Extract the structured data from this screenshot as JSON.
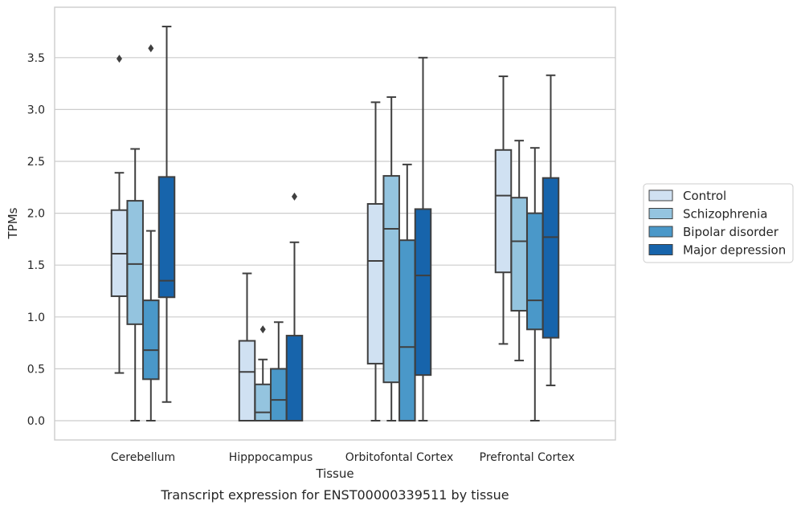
{
  "caption": "Transcript expression for ENST00000339511 by tissue",
  "chart_data": {
    "type": "box",
    "xlabel": "Tissue",
    "ylabel": "TPMs",
    "ylim": [
      -0.18,
      3.98
    ],
    "yticks": [
      0.0,
      0.5,
      1.0,
      1.5,
      2.0,
      2.5,
      3.0,
      3.5
    ],
    "ytick_labels": [
      "0.0",
      "0.5",
      "1.0",
      "1.5",
      "2.0",
      "2.5",
      "3.0",
      "3.5"
    ],
    "grid": "horizontal",
    "legend_position": "right",
    "categories": [
      "Cerebellum",
      "Hipppocampus",
      "Orbitofontal Cortex",
      "Prefrontal Cortex"
    ],
    "series": [
      {
        "name": "Control",
        "color": "#d0e1f2",
        "boxes": [
          {
            "whisker_low": 0.46,
            "q1": 1.2,
            "median": 1.61,
            "q3": 2.03,
            "whisker_high": 2.39,
            "outliers": [
              3.49
            ]
          },
          {
            "whisker_low": 0.0,
            "q1": 0.0,
            "median": 0.47,
            "q3": 0.77,
            "whisker_high": 1.42,
            "outliers": []
          },
          {
            "whisker_low": 0.0,
            "q1": 0.55,
            "median": 1.54,
            "q3": 2.09,
            "whisker_high": 3.07,
            "outliers": []
          },
          {
            "whisker_low": 0.74,
            "q1": 1.43,
            "median": 2.17,
            "q3": 2.61,
            "whisker_high": 3.32,
            "outliers": []
          }
        ]
      },
      {
        "name": "Schizophrenia",
        "color": "#94c4df",
        "boxes": [
          {
            "whisker_low": 0.0,
            "q1": 0.93,
            "median": 1.51,
            "q3": 2.12,
            "whisker_high": 2.62,
            "outliers": []
          },
          {
            "whisker_low": 0.0,
            "q1": 0.0,
            "median": 0.08,
            "q3": 0.35,
            "whisker_high": 0.59,
            "outliers": [
              0.88
            ]
          },
          {
            "whisker_low": 0.0,
            "q1": 0.37,
            "median": 1.85,
            "q3": 2.36,
            "whisker_high": 3.12,
            "outliers": []
          },
          {
            "whisker_low": 0.58,
            "q1": 1.06,
            "median": 1.73,
            "q3": 2.15,
            "whisker_high": 2.7,
            "outliers": []
          }
        ]
      },
      {
        "name": "Bipolar disorder",
        "color": "#4a98c9",
        "boxes": [
          {
            "whisker_low": 0.0,
            "q1": 0.4,
            "median": 0.68,
            "q3": 1.16,
            "whisker_high": 1.83,
            "outliers": [
              3.59
            ]
          },
          {
            "whisker_low": 0.0,
            "q1": 0.0,
            "median": 0.2,
            "q3": 0.5,
            "whisker_high": 0.95,
            "outliers": []
          },
          {
            "whisker_low": 0.0,
            "q1": 0.0,
            "median": 0.71,
            "q3": 1.74,
            "whisker_high": 2.47,
            "outliers": []
          },
          {
            "whisker_low": 0.0,
            "q1": 0.88,
            "median": 1.16,
            "q3": 2.0,
            "whisker_high": 2.63,
            "outliers": []
          }
        ]
      },
      {
        "name": "Major depression",
        "color": "#1764ab",
        "boxes": [
          {
            "whisker_low": 0.18,
            "q1": 1.19,
            "median": 1.35,
            "q3": 2.35,
            "whisker_high": 3.8,
            "outliers": []
          },
          {
            "whisker_low": 0.0,
            "q1": 0.0,
            "median": 0.0,
            "q3": 0.82,
            "whisker_high": 1.72,
            "outliers": [
              2.16
            ]
          },
          {
            "whisker_low": 0.0,
            "q1": 0.44,
            "median": 1.4,
            "q3": 2.04,
            "whisker_high": 3.5,
            "outliers": []
          },
          {
            "whisker_low": 0.34,
            "q1": 0.8,
            "median": 1.77,
            "q3": 2.34,
            "whisker_high": 3.33,
            "outliers": []
          }
        ]
      }
    ]
  }
}
